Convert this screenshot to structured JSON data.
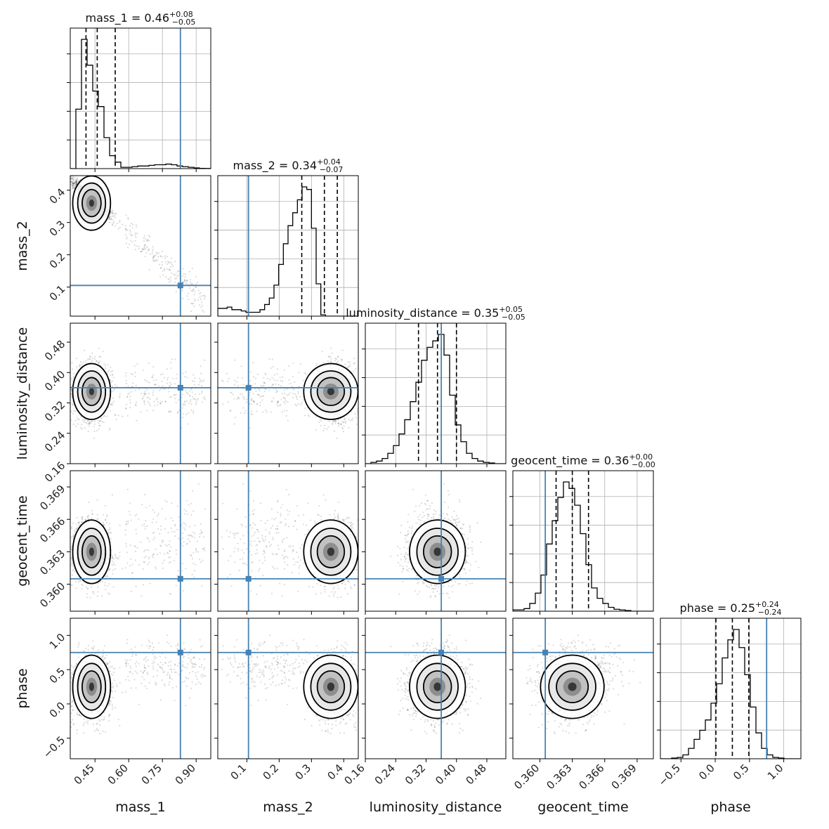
{
  "chart_data": {
    "type": "corner",
    "parameters": [
      "mass_1",
      "mass_2",
      "luminosity_distance",
      "geocent_time",
      "phase"
    ],
    "axis_labels": {
      "mass_1": "mass_1",
      "mass_2": "mass_2",
      "luminosity_distance": "luminosity_distance",
      "geocent_time": "geocent_time",
      "phase": "phase"
    },
    "titles": [
      {
        "parameter": "mass_1",
        "prefix": "mass_1 = 0.46",
        "plus": "+0.08",
        "minus": "−0.05"
      },
      {
        "parameter": "mass_2",
        "prefix": "mass_2 = 0.34",
        "plus": "+0.04",
        "minus": "−0.07"
      },
      {
        "parameter": "luminosity_distance",
        "prefix": "luminosity_distance = 0.35",
        "plus": "+0.05",
        "minus": "−0.05"
      },
      {
        "parameter": "geocent_time",
        "prefix": "geocent_time = 0.36",
        "plus": "+0.00",
        "minus": "−0.00"
      },
      {
        "parameter": "phase",
        "prefix": "phase = 0.25",
        "plus": "+0.24",
        "minus": "−0.24"
      }
    ],
    "ranges": {
      "mass_1": [
        0.34,
        0.965
      ],
      "mass_2": [
        0.01,
        0.445
      ],
      "luminosity_distance": [
        0.16,
        0.53
      ],
      "geocent_time": [
        0.3575,
        0.3705
      ],
      "phase": [
        -0.8,
        1.25
      ]
    },
    "ticks": {
      "mass_1": {
        "values": [
          0.45,
          0.6,
          0.75,
          0.9
        ],
        "labels": [
          "0.45",
          "0.60",
          "0.75",
          "0.90"
        ]
      },
      "mass_2": {
        "values": [
          0.1,
          0.2,
          0.3,
          0.4
        ],
        "labels": [
          "0.1",
          "0.2",
          "0.3",
          "0.4"
        ]
      },
      "luminosity_distance": {
        "values": [
          0.16,
          0.24,
          0.32,
          0.4,
          0.48
        ],
        "labels": [
          "0.16",
          "0.24",
          "0.32",
          "0.40",
          "0.48"
        ]
      },
      "geocent_time": {
        "values": [
          0.36,
          0.363,
          0.366,
          0.369
        ],
        "labels": [
          "0.360",
          "0.363",
          "0.366",
          "0.369"
        ]
      },
      "phase": {
        "values": [
          -0.5,
          0.0,
          0.5,
          1.0
        ],
        "labels": [
          "−0.5",
          "0.0",
          "0.5",
          "1.0"
        ]
      }
    },
    "truths": {
      "mass_1": 0.83,
      "mass_2": 0.105,
      "luminosity_distance": 0.36,
      "geocent_time": 0.3605,
      "phase": 0.75
    },
    "quantiles": {
      "mass_1": [
        0.41,
        0.46,
        0.54
      ],
      "mass_2": [
        0.27,
        0.34,
        0.38
      ],
      "luminosity_distance": [
        0.3,
        0.35,
        0.4
      ],
      "geocent_time": [
        0.3615,
        0.363,
        0.3645
      ],
      "phase": [
        0.01,
        0.25,
        0.49
      ]
    },
    "histograms": {
      "mass_1": {
        "edges_start": 0.34,
        "bin_width": 0.025,
        "counts": [
          0,
          46,
          100,
          80,
          60,
          48,
          24,
          10,
          5,
          1,
          1,
          1.5,
          2,
          2,
          2.5,
          3,
          3,
          3.5,
          3,
          2,
          1.5,
          1,
          0.5,
          0.2,
          0.1
        ]
      },
      "mass_2": {
        "edges_start": 0.01,
        "bin_width": 0.0145,
        "counts": [
          6,
          6,
          7,
          5,
          5,
          4,
          3,
          3,
          3,
          5,
          9,
          14,
          24,
          40,
          56,
          70,
          80,
          90,
          100,
          98,
          68,
          25,
          1,
          0,
          0,
          0,
          0,
          0,
          0,
          0
        ]
      },
      "luminosity_distance": {
        "edges_start": 0.16,
        "bin_width": 0.0148,
        "counts": [
          0,
          1,
          2,
          4,
          8,
          14,
          23,
          34,
          48,
          63,
          80,
          90,
          95,
          100,
          84,
          53,
          30,
          17,
          8,
          4,
          2,
          1,
          0.5,
          0,
          0
        ]
      },
      "geocent_time": {
        "edges_start": 0.3575,
        "bin_width": 0.00052,
        "counts": [
          1,
          1,
          2,
          6,
          14,
          28,
          52,
          70,
          88,
          100,
          95,
          82,
          60,
          36,
          18,
          10,
          6,
          3,
          1.5,
          1,
          0.5,
          0,
          0,
          0,
          0
        ]
      },
      "phase": {
        "edges_start": -0.8,
        "bin_width": 0.082,
        "counts": [
          0,
          0,
          0.5,
          1,
          3,
          8,
          15,
          22,
          30,
          43,
          58,
          78,
          92,
          100,
          86,
          65,
          40,
          20,
          8,
          3,
          1,
          0.5,
          0,
          0,
          0
        ]
      }
    },
    "posterior_center": {
      "mass_1": 0.435,
      "mass_2": 0.36,
      "luminosity_distance": 0.35,
      "geocent_time": 0.363,
      "phase": 0.25
    },
    "posterior_spread": {
      "mass_1": 0.04,
      "mass_2": 0.04,
      "luminosity_distance": 0.035,
      "geocent_time": 0.0014,
      "phase": 0.22
    }
  }
}
